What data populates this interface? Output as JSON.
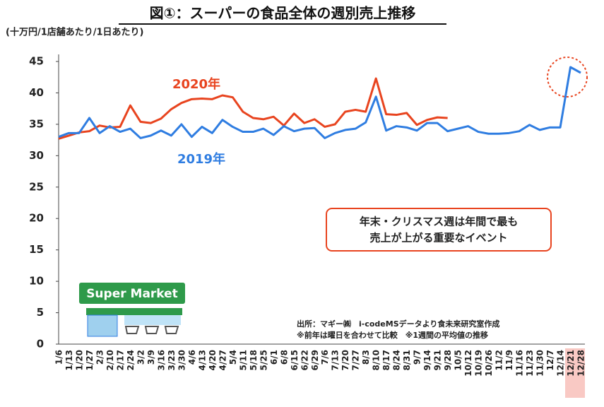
{
  "chart_data": {
    "type": "line",
    "title": "図①：スーパーの食品全体の週別売上推移",
    "y_axis_label": "(十万円/1店舗あたり/1日あたり)",
    "categories": [
      "1/6",
      "1/13",
      "1/20",
      "1/27",
      "2/3",
      "2/10",
      "2/17",
      "2/24",
      "3/2",
      "3/9",
      "3/16",
      "3/23",
      "3/30",
      "4/6",
      "4/13",
      "4/20",
      "4/27",
      "5/4",
      "5/11",
      "5/18",
      "5/25",
      "6/1",
      "6/8",
      "6/15",
      "6/22",
      "6/29",
      "7/6",
      "7/13",
      "7/20",
      "7/27",
      "8/3",
      "8/10",
      "8/17",
      "8/24",
      "8/31",
      "9/7",
      "9/14",
      "9/21",
      "9/28",
      "10/5",
      "10/12",
      "10/19",
      "10/26",
      "11/2",
      "11/9",
      "11/16",
      "11/23",
      "11/30",
      "12/7",
      "12/14",
      "12/21",
      "12/28"
    ],
    "series": [
      {
        "name": "2019年",
        "color": "#2f7de1",
        "values": [
          33.0,
          33.6,
          33.6,
          36.0,
          33.6,
          34.7,
          33.8,
          34.3,
          32.8,
          33.2,
          34.0,
          33.2,
          35.0,
          33.0,
          34.6,
          33.6,
          35.7,
          34.6,
          33.8,
          33.8,
          34.3,
          33.3,
          34.7,
          33.9,
          34.3,
          34.4,
          32.8,
          33.6,
          34.1,
          34.3,
          35.3,
          39.4,
          34.0,
          34.7,
          34.5,
          34.0,
          35.2,
          35.2,
          33.9,
          34.3,
          34.7,
          33.8,
          33.5,
          33.5,
          33.6,
          33.9,
          34.9,
          34.1,
          34.5,
          34.5,
          44.1,
          43.2
        ]
      },
      {
        "name": "2020年",
        "color": "#e8441f",
        "values": [
          32.7,
          33.2,
          33.7,
          33.9,
          34.8,
          34.5,
          34.6,
          38.0,
          35.4,
          35.2,
          35.9,
          37.4,
          38.4,
          39.0,
          39.1,
          39.0,
          39.6,
          39.3,
          37.0,
          36.0,
          35.8,
          36.2,
          34.8,
          36.7,
          35.2,
          35.8,
          34.6,
          35.0,
          37.0,
          37.3,
          37.0,
          42.3,
          36.6,
          36.5,
          36.8,
          34.9,
          35.7,
          36.1,
          36.0,
          null,
          null,
          null,
          null,
          null,
          null,
          null,
          null,
          null,
          null,
          null,
          null,
          null
        ]
      }
    ],
    "ylim": [
      0,
      45
    ],
    "yticks": [
      0,
      5,
      10,
      15,
      20,
      25,
      30,
      35,
      40,
      45
    ],
    "callout": [
      "年末・クリスマス週は年間で最も",
      "売上が上がる重要なイベント"
    ],
    "source": [
      "出所：マギー㈱　i-codeMSデータより食未来研究室作成",
      "※前年は曜日を合わせて比較　※1週間の平均値の推移"
    ],
    "icon_label": "Super Market"
  }
}
